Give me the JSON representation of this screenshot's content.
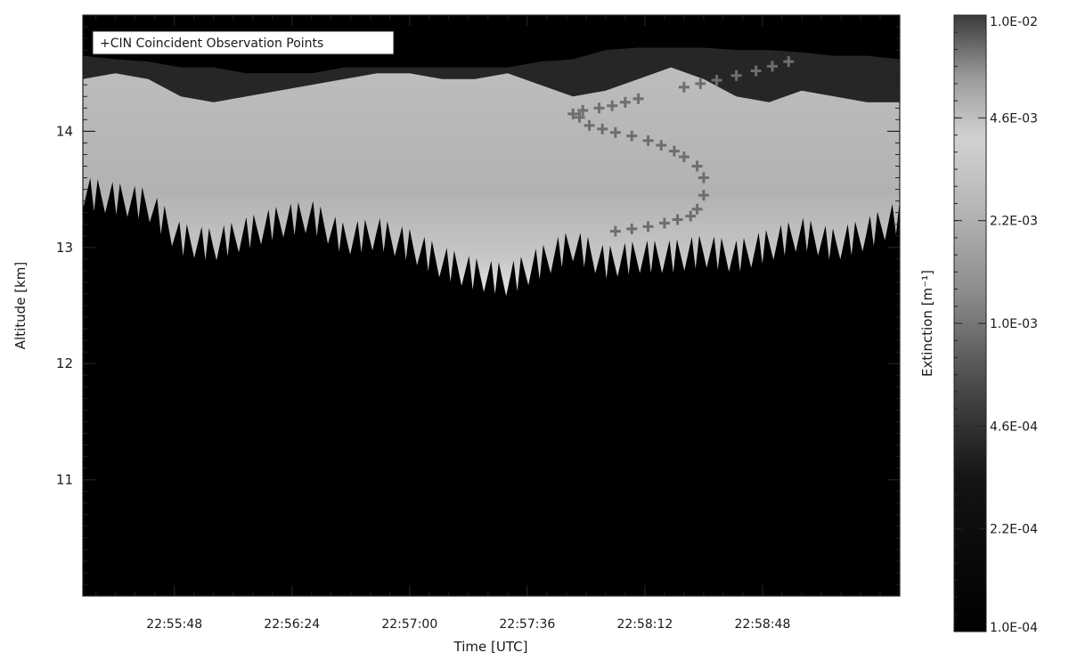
{
  "chart_data": {
    "type": "heatmap",
    "title": "",
    "xlabel": "Time [UTC]",
    "ylabel": "Altitude [km]",
    "x_tick_labels": [
      "22:55:48",
      "22:56:24",
      "22:57:00",
      "22:57:36",
      "22:58:12",
      "22:58:48"
    ],
    "x_ticks_seconds": [
      108,
      144,
      180,
      216,
      252,
      288
    ],
    "xlim_seconds": [
      80,
      330
    ],
    "y_ticks": [
      11,
      12,
      13,
      14
    ],
    "ylim": [
      10.0,
      15.0
    ],
    "colorbar": {
      "label": "Extinction [m⁻¹]",
      "scale": "log",
      "range": [
        0.0001,
        0.01
      ],
      "tick_labels": [
        "1.0E-02",
        "4.6E-03",
        "2.2E-03",
        "1.0E-03",
        "4.6E-04",
        "2.2E-04",
        "1.0E-04"
      ]
    },
    "legend": {
      "text": "+CIN Coincident Observation Points",
      "position": "top-left"
    },
    "series": [
      {
        "name": "CIN Coincident Observation Points",
        "points": [
          [
            230,
            14.15
          ],
          [
            232,
            14.12
          ],
          [
            233,
            14.18
          ],
          [
            235,
            14.05
          ],
          [
            238,
            14.2
          ],
          [
            239,
            14.02
          ],
          [
            242,
            14.22
          ],
          [
            243,
            13.99
          ],
          [
            246,
            14.25
          ],
          [
            248,
            13.96
          ],
          [
            250,
            14.28
          ],
          [
            253,
            13.92
          ],
          [
            257,
            13.88
          ],
          [
            261,
            13.83
          ],
          [
            264,
            13.78
          ],
          [
            268,
            13.7
          ],
          [
            270,
            13.6
          ],
          [
            270,
            13.45
          ],
          [
            268,
            13.33
          ],
          [
            266,
            13.27
          ],
          [
            262,
            13.24
          ],
          [
            258,
            13.21
          ],
          [
            253,
            13.18
          ],
          [
            248,
            13.16
          ],
          [
            243,
            13.14
          ],
          [
            264,
            14.38
          ],
          [
            269,
            14.41
          ],
          [
            274,
            14.44
          ],
          [
            280,
            14.48
          ],
          [
            286,
            14.52
          ],
          [
            291,
            14.56
          ],
          [
            296,
            14.6
          ]
        ]
      }
    ],
    "cloud_layer": {
      "top_km": [
        14.45,
        14.5,
        14.45,
        14.3,
        14.25,
        14.3,
        14.35,
        14.4,
        14.45,
        14.5,
        14.5,
        14.45,
        14.45,
        14.5,
        14.4,
        14.3,
        14.35,
        14.45,
        14.55,
        14.45,
        14.3,
        14.25,
        14.35,
        14.3,
        14.25,
        14.25
      ],
      "base_km": [
        13.55,
        13.5,
        13.45,
        13.15,
        13.1,
        13.2,
        13.3,
        13.35,
        13.15,
        13.2,
        13.1,
        12.95,
        12.85,
        12.8,
        12.95,
        13.1,
        12.95,
        13.0,
        13.0,
        13.05,
        13.0,
        13.1,
        13.2,
        13.1,
        13.2,
        13.35
      ],
      "dark_cap_top_km": [
        14.65,
        14.62,
        14.6,
        14.55,
        14.55,
        14.5,
        14.5,
        14.5,
        14.55,
        14.55,
        14.55,
        14.55,
        14.55,
        14.55,
        14.6,
        14.62,
        14.7,
        14.72,
        14.72,
        14.72,
        14.7,
        14.7,
        14.68,
        14.65,
        14.65,
        14.62
      ]
    }
  }
}
